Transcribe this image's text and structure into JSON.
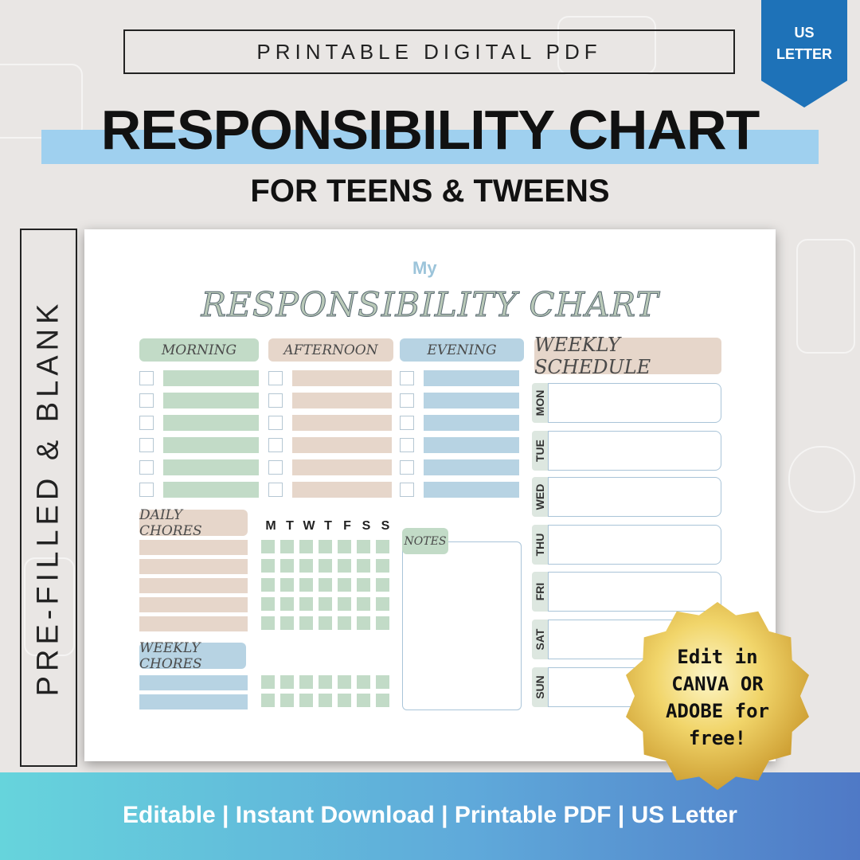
{
  "banner": {
    "text": "PRINTABLE DIGITAL PDF"
  },
  "ribbon": {
    "line1": "US",
    "line2": "LETTER",
    "color": "#1e72b8"
  },
  "title": {
    "main": "RESPONSIBILITY CHART",
    "sub": "FOR TEENS & TWEENS",
    "stripe_color": "#9fd0ef"
  },
  "side_label": "PRE-FILLED & BLANK",
  "sheet": {
    "my": "My",
    "title": "RESPONSIBILITY CHART",
    "sections": {
      "morning": "MORNING",
      "afternoon": "AFTERNOON",
      "evening": "EVENING",
      "weekly_schedule": "WEEKLY SCHEDULE",
      "daily_chores": "DAILY CHORES",
      "weekly_chores": "WEEKLY CHORES",
      "notes": "NOTES"
    },
    "day_letters": [
      "M",
      "T",
      "W",
      "T",
      "F",
      "S",
      "S"
    ],
    "days": [
      "MON",
      "TUE",
      "WED",
      "THU",
      "FRI",
      "SAT",
      "SUN"
    ],
    "colors": {
      "green": "#c2dbc7",
      "tan": "#e6d6ca",
      "blue": "#b7d3e3"
    }
  },
  "seal": {
    "line1": "Edit in",
    "line2": "CANVA OR",
    "line3": "ADOBE for",
    "line4": "free!"
  },
  "footer": {
    "text": "Editable | Instant Download | Printable PDF | US Letter"
  }
}
